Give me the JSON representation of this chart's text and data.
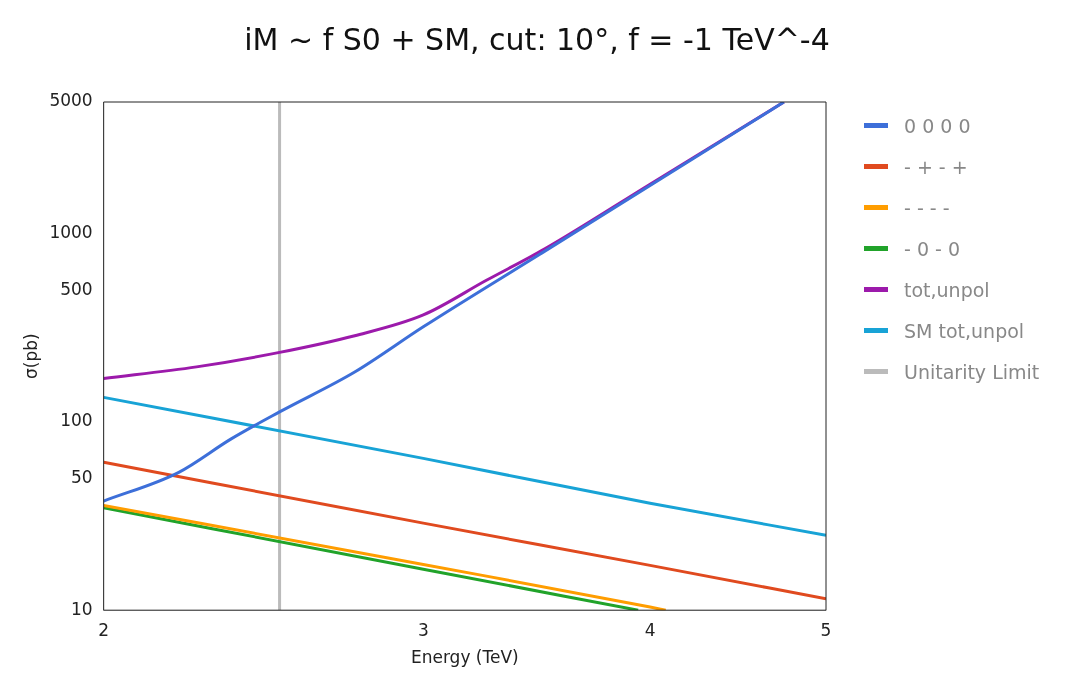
{
  "chart_data": {
    "type": "line",
    "title": "iM ~ f S0 + SM, cut: 10°, f = -1 TeV^-4",
    "xlabel": "Energy (TeV)",
    "ylabel": "σ(pb)",
    "log": "xy",
    "xlim": [
      2,
      5
    ],
    "xticks": [
      2,
      3,
      4,
      5
    ],
    "ylim": [
      10,
      5000
    ],
    "yticks": [
      10,
      50,
      100,
      500,
      1000,
      5000
    ],
    "grid": false,
    "legend": "right",
    "marker": "none",
    "line_style": "solid",
    "series": [
      {
        "name": "0 0 0 0",
        "color": "#3d6fd9",
        "x": [
          2,
          2.2,
          2.35,
          2.5,
          2.75,
          3,
          3.5,
          4,
          4.74
        ],
        "values": [
          38,
          54,
          81,
          113,
          184,
          320,
          807,
          1800,
          5000
        ]
      },
      {
        "name": "- + - +",
        "color": "#e04a1f",
        "x": [
          2,
          3,
          4,
          5
        ],
        "values": [
          61,
          29,
          17.3,
          11.5
        ]
      },
      {
        "name": "- - - -",
        "color": "#ff9d00",
        "x": [
          2,
          3,
          4,
          4.08
        ],
        "values": [
          36,
          17.5,
          10.4,
          10
        ]
      },
      {
        "name": "- 0 - 0",
        "color": "#21a32a",
        "x": [
          2,
          3,
          3.94
        ],
        "values": [
          35,
          16.5,
          10
        ]
      },
      {
        "name": "tot,unpol",
        "color": "#9c1aab",
        "x": [
          2,
          2.25,
          2.5,
          2.75,
          3,
          3.25,
          3.5,
          4,
          4.74
        ],
        "values": [
          170,
          196,
          234,
          287,
          370,
          565,
          830,
          1830,
          5000
        ]
      },
      {
        "name": "SM tot,unpol",
        "color": "#18a3d6",
        "x": [
          2,
          3,
          4,
          5
        ],
        "values": [
          135,
          64,
          37,
          25
        ]
      },
      {
        "name": "Unitarity Limit",
        "color": "#bbbbbb",
        "x": [
          2.5,
          2.5
        ],
        "values": [
          10,
          5000
        ]
      }
    ]
  }
}
